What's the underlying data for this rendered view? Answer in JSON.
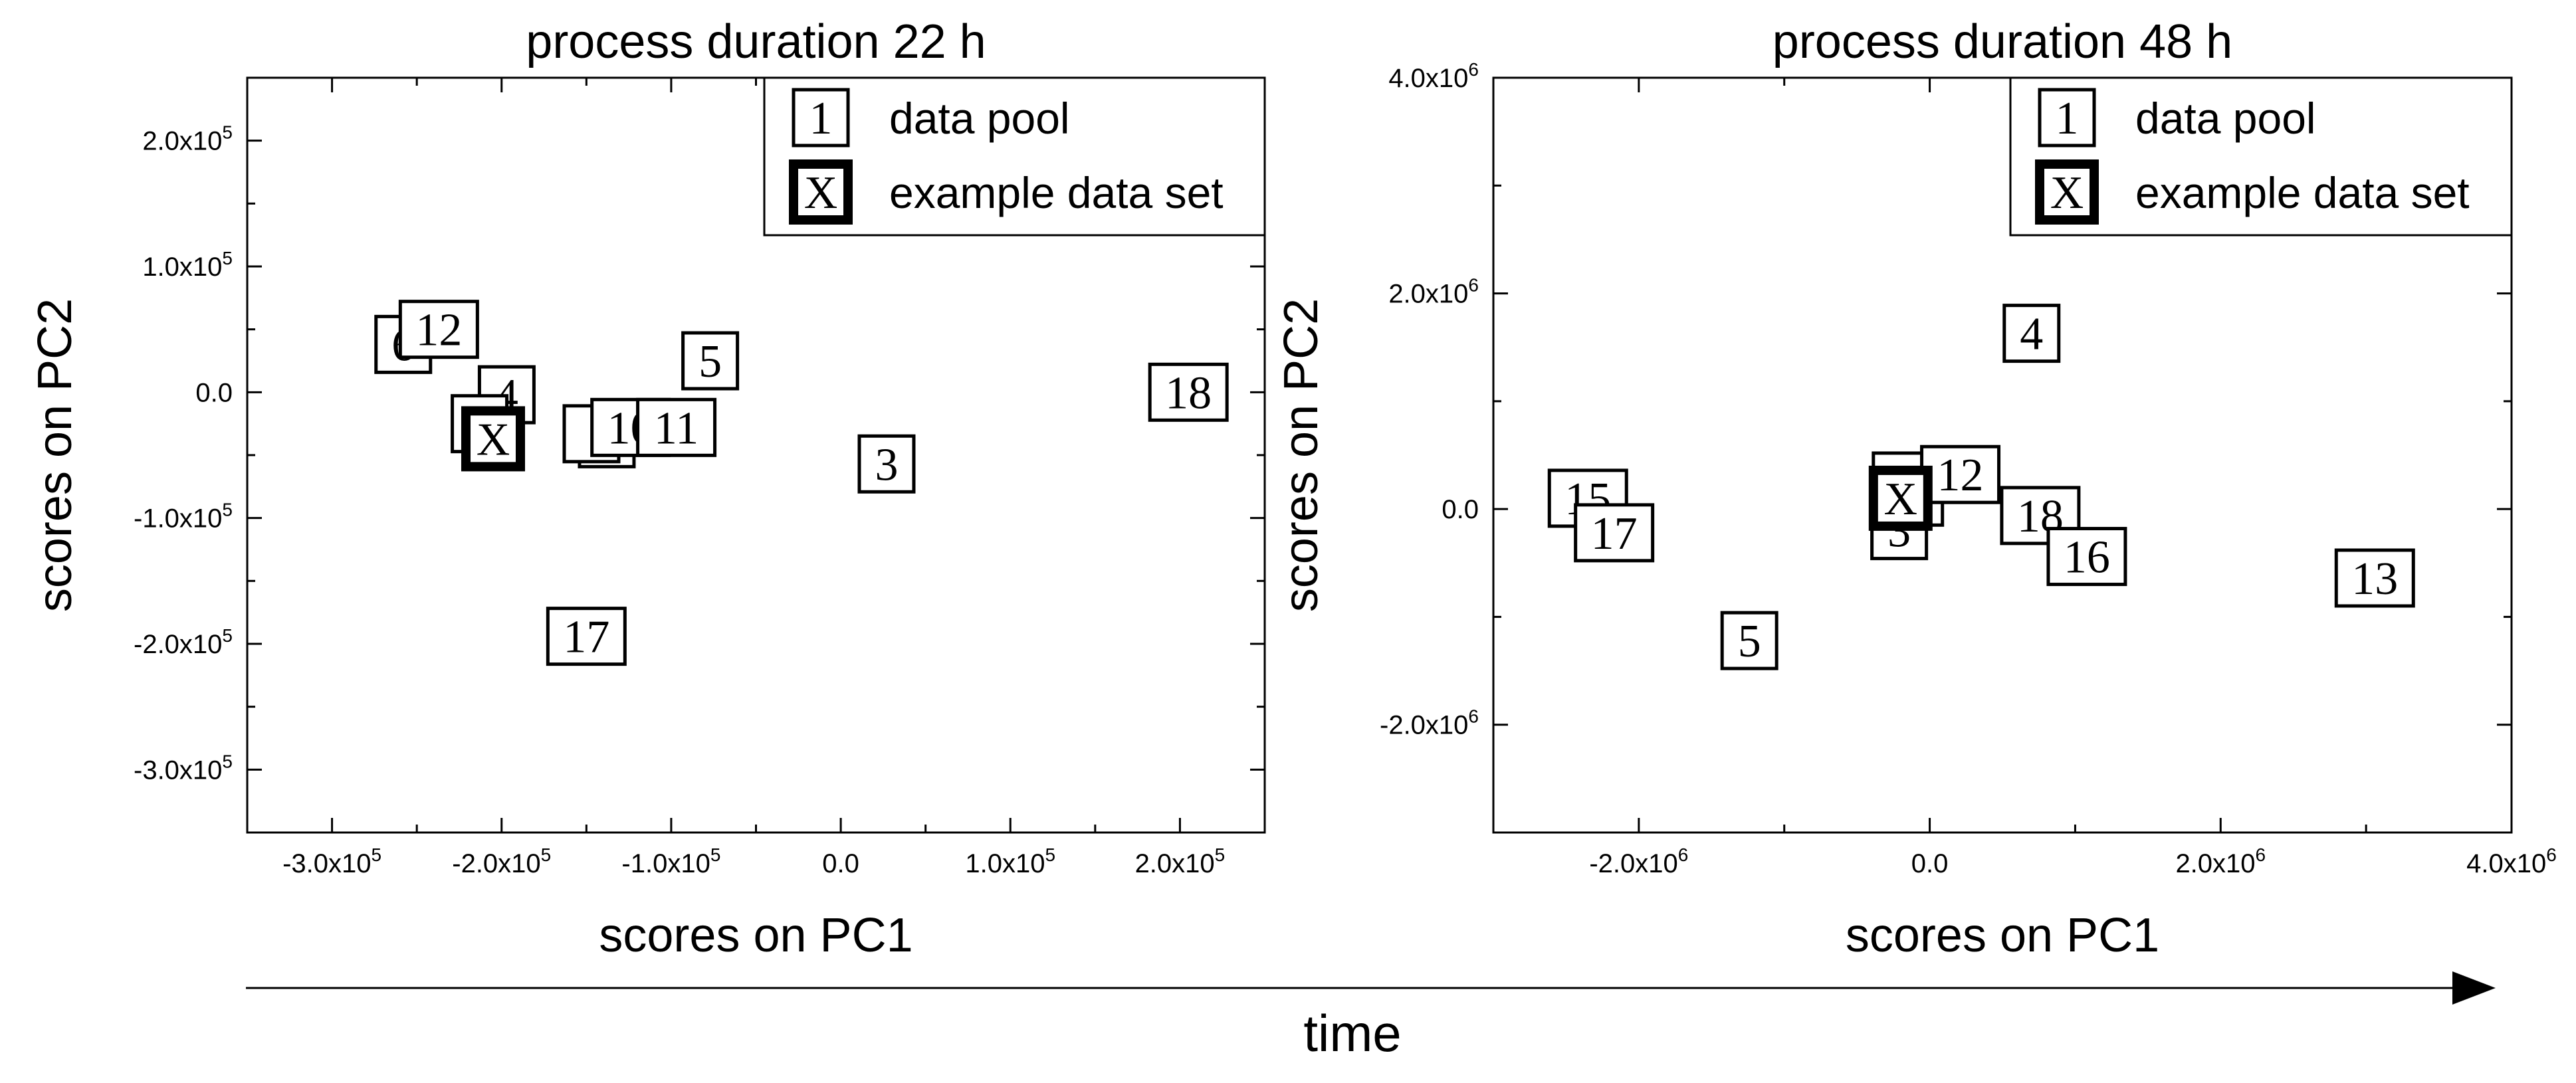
{
  "chart_data": [
    {
      "type": "scatter",
      "title": "process duration 22 h",
      "xlabel": "scores on PC1",
      "ylabel": "scores on PC2",
      "xlim": [
        -350000,
        250000
      ],
      "ylim": [
        -350000,
        250000
      ],
      "x_ticks": [
        {
          "value": -300000,
          "mant": "-3.0x10",
          "exp": "5"
        },
        {
          "value": -200000,
          "mant": "-2.0x10",
          "exp": "5"
        },
        {
          "value": -100000,
          "mant": "-1.0x10",
          "exp": "5"
        },
        {
          "value": 0,
          "mant": "0.0",
          "exp": ""
        },
        {
          "value": 100000,
          "mant": "1.0x10",
          "exp": "5"
        },
        {
          "value": 200000,
          "mant": "2.0x10",
          "exp": "5"
        }
      ],
      "y_ticks": [
        {
          "value": 200000,
          "mant": "2.0x10",
          "exp": "5"
        },
        {
          "value": 100000,
          "mant": "1.0x10",
          "exp": "5"
        },
        {
          "value": 0,
          "mant": "0.0",
          "exp": ""
        },
        {
          "value": -100000,
          "mant": "-1.0x10",
          "exp": "5"
        },
        {
          "value": -200000,
          "mant": "-2.0x10",
          "exp": "5"
        },
        {
          "value": -300000,
          "mant": "-3.0x10",
          "exp": "5"
        }
      ],
      "legend": {
        "position": "top-right",
        "entries": [
          {
            "symbol": "1",
            "label": "data pool",
            "bold": false
          },
          {
            "symbol": "X",
            "label": "example data set",
            "bold": true
          }
        ]
      },
      "series": [
        {
          "name": "data pool",
          "points": [
            {
              "label": "6",
              "x": -258000,
              "y": 38000
            },
            {
              "label": "12",
              "x": -237000,
              "y": 50000
            },
            {
              "label": "4",
              "x": -197000,
              "y": -2000
            },
            {
              "label": "",
              "x": -213000,
              "y": -25000
            },
            {
              "label": "",
              "x": -138000,
              "y": -37000
            },
            {
              "label": "",
              "x": -147000,
              "y": -33000
            },
            {
              "label": "10",
              "x": -124000,
              "y": -28000
            },
            {
              "label": "11",
              "x": -97000,
              "y": -28000
            },
            {
              "label": "5",
              "x": -77000,
              "y": 25000
            },
            {
              "label": "3",
              "x": 27000,
              "y": -57000
            },
            {
              "label": "17",
              "x": -150000,
              "y": -194000
            },
            {
              "label": "18",
              "x": 205000,
              "y": 0
            }
          ]
        },
        {
          "name": "example data set",
          "points": [
            {
              "label": "X",
              "x": -205000,
              "y": -37000
            }
          ]
        }
      ]
    },
    {
      "type": "scatter",
      "title": "process duration 48 h",
      "xlabel": "scores on PC1",
      "ylabel": "scores on PC2",
      "xlim": [
        -3000000,
        4000000
      ],
      "ylim": [
        -3000000,
        4000000
      ],
      "x_ticks": [
        {
          "value": -2000000,
          "mant": "-2.0x10",
          "exp": "6"
        },
        {
          "value": 0,
          "mant": "0.0",
          "exp": ""
        },
        {
          "value": 2000000,
          "mant": "2.0x10",
          "exp": "6"
        },
        {
          "value": 4000000,
          "mant": "4.0x10",
          "exp": "6"
        }
      ],
      "y_ticks": [
        {
          "value": 4000000,
          "mant": "4.0x10",
          "exp": "6"
        },
        {
          "value": 2000000,
          "mant": "2.0x10",
          "exp": "6"
        },
        {
          "value": 0,
          "mant": "0.0",
          "exp": ""
        },
        {
          "value": -2000000,
          "mant": "-2.0x10",
          "exp": "6"
        }
      ],
      "legend": {
        "position": "top-right",
        "entries": [
          {
            "symbol": "1",
            "label": "data pool",
            "bold": false
          },
          {
            "symbol": "X",
            "label": "example data set",
            "bold": true
          }
        ]
      },
      "series": [
        {
          "name": "data pool",
          "points": [
            {
              "label": "15",
              "x": -2350000,
              "y": 100000
            },
            {
              "label": "17",
              "x": -2170000,
              "y": -220000
            },
            {
              "label": "4",
              "x": 700000,
              "y": 1630000
            },
            {
              "label": "",
              "x": -200000,
              "y": 260000
            },
            {
              "label": "",
              "x": -100000,
              "y": 110000
            },
            {
              "label": "12",
              "x": 210000,
              "y": 320000
            },
            {
              "label": "3",
              "x": -210000,
              "y": -200000
            },
            {
              "label": "18",
              "x": 760000,
              "y": -60000
            },
            {
              "label": "16",
              "x": 1080000,
              "y": -440000
            },
            {
              "label": "5",
              "x": -1240000,
              "y": -1220000
            },
            {
              "label": "13",
              "x": 3060000,
              "y": -640000
            }
          ]
        },
        {
          "name": "example data set",
          "points": [
            {
              "label": "X",
              "x": -200000,
              "y": 100000
            }
          ]
        }
      ]
    }
  ],
  "time_axis": {
    "label": "time"
  }
}
